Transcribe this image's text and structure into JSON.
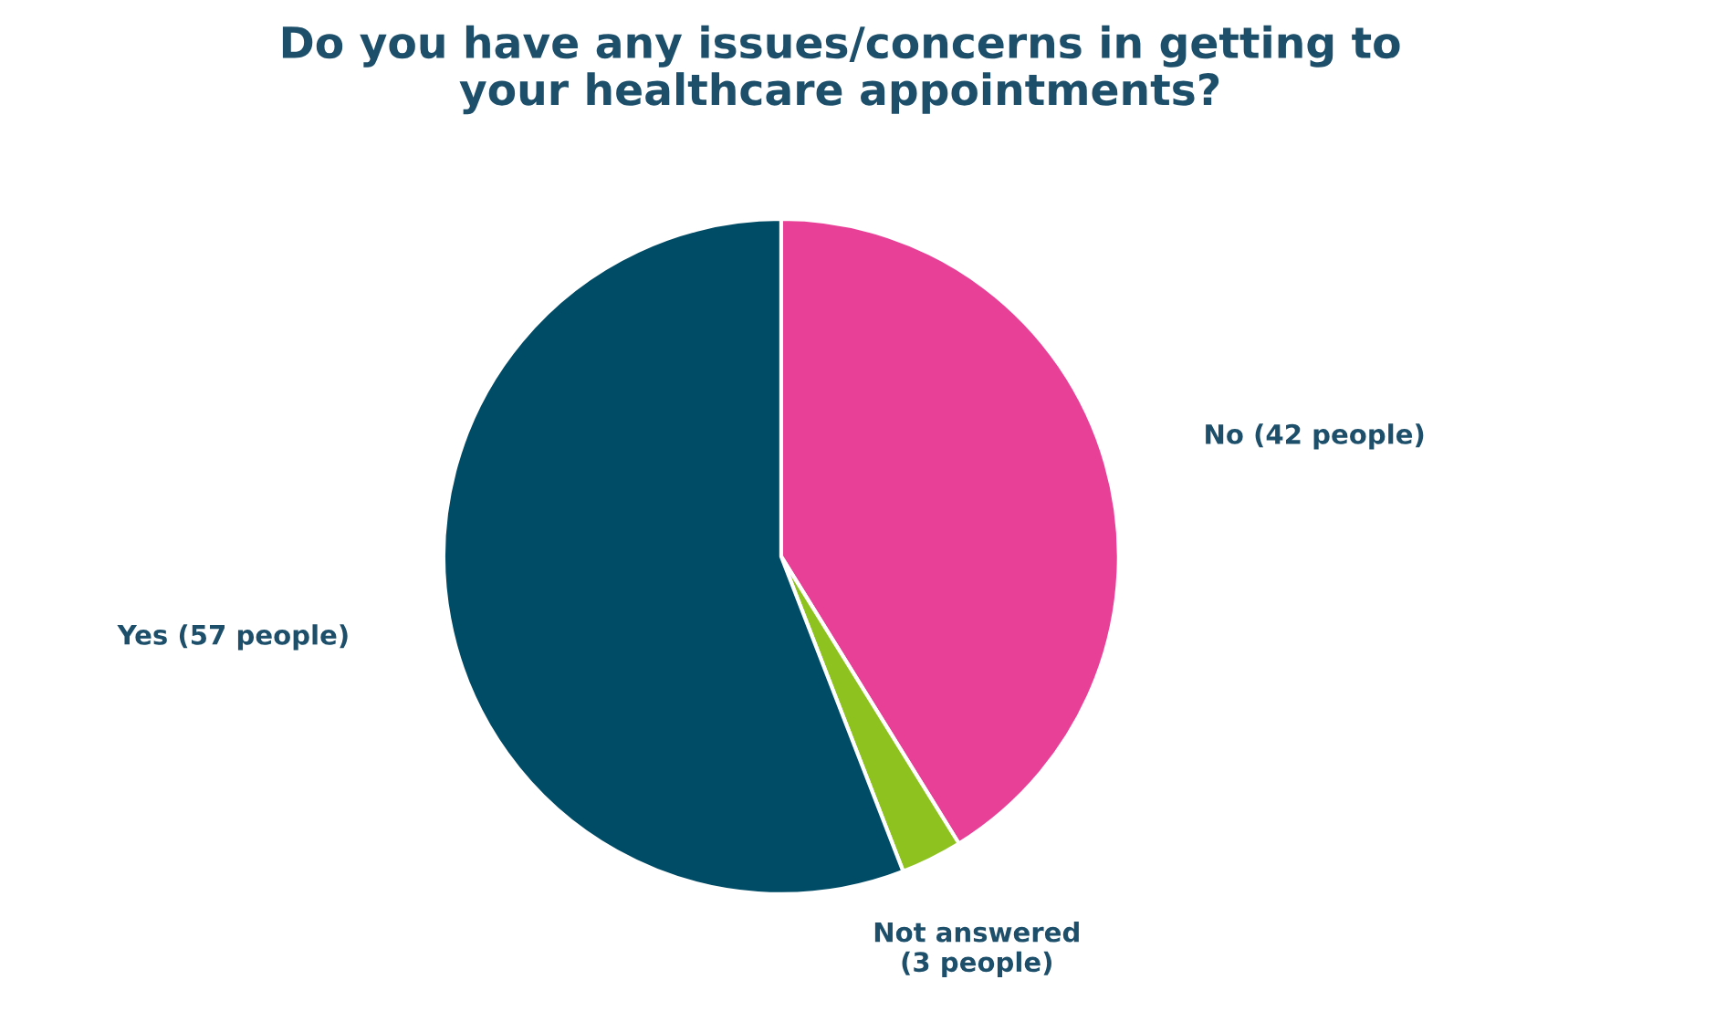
{
  "chart_data": {
    "type": "pie",
    "title": "Do you have any issues/concerns in getting to\nyour healthcare appointments?",
    "categories": [
      "No (42 people)",
      "Not answered\n(3 people)",
      "Yes (57 people)"
    ],
    "values": [
      42,
      3,
      57
    ],
    "colors": [
      "#e84097",
      "#8dc21f",
      "#004b66"
    ],
    "legend": false
  }
}
